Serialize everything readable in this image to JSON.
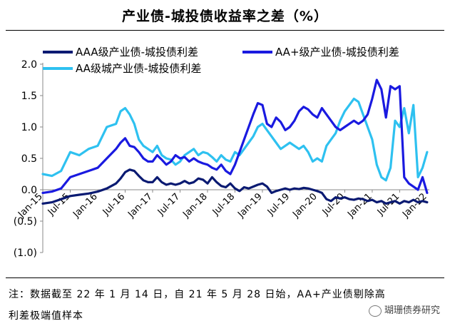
{
  "chart_data": {
    "type": "line",
    "title": "产业债-城投债收益率之差（%）",
    "x": [
      "Jan-15",
      "Jul-15",
      "Jan-16",
      "Jul-16",
      "Jan-17",
      "Jul-17",
      "Jan-18",
      "Jul-18",
      "Jan-19",
      "Jul-19",
      "Jan-20",
      "Jul-20",
      "Jan-21",
      "Jul-21",
      "Jan-22"
    ],
    "x_tick_labels": [
      "Jan-15",
      "Jul-15",
      "Jan-16",
      "Jul-16",
      "Jan-17",
      "Jul-17",
      "Jan-18",
      "Jul-18",
      "Jan-19",
      "Jul-19",
      "Jan-20",
      "Jul-20",
      "Jan-21",
      "Jul-21",
      "Jan-22"
    ],
    "y_tick_labels": [
      "2.0",
      "1.5",
      "1.0",
      "0.5",
      "0.0",
      "(0.5)",
      "(1.0)"
    ],
    "ylim": [
      -1.0,
      2.0
    ],
    "xlim": [
      "Jan-15",
      "Jan-22"
    ],
    "legend_position": "top",
    "grid": false,
    "series": [
      {
        "name": "AAA级产业债-城投债利差",
        "color": "#0a1a72",
        "points": [
          [
            "2015-01",
            -0.22
          ],
          [
            "2015-03",
            -0.2
          ],
          [
            "2015-05",
            -0.15
          ],
          [
            "2015-07",
            -0.1
          ],
          [
            "2015-09",
            -0.08
          ],
          [
            "2015-11",
            -0.06
          ],
          [
            "2016-01",
            -0.03
          ],
          [
            "2016-03",
            0.02
          ],
          [
            "2016-05",
            0.1
          ],
          [
            "2016-06",
            0.18
          ],
          [
            "2016-07",
            0.28
          ],
          [
            "2016-08",
            0.32
          ],
          [
            "2016-09",
            0.3
          ],
          [
            "2016-10",
            0.22
          ],
          [
            "2016-11",
            0.15
          ],
          [
            "2016-12",
            0.12
          ],
          [
            "2017-01",
            0.12
          ],
          [
            "2017-02",
            0.2
          ],
          [
            "2017-03",
            0.12
          ],
          [
            "2017-04",
            0.08
          ],
          [
            "2017-05",
            0.1
          ],
          [
            "2017-06",
            0.08
          ],
          [
            "2017-07",
            0.1
          ],
          [
            "2017-08",
            0.14
          ],
          [
            "2017-09",
            0.1
          ],
          [
            "2017-10",
            0.12
          ],
          [
            "2017-11",
            0.18
          ],
          [
            "2017-12",
            0.16
          ],
          [
            "2018-01",
            0.1
          ],
          [
            "2018-02",
            0.2
          ],
          [
            "2018-03",
            0.12
          ],
          [
            "2018-04",
            0.06
          ],
          [
            "2018-05",
            0.04
          ],
          [
            "2018-06",
            0.1
          ],
          [
            "2018-07",
            0.02
          ],
          [
            "2018-08",
            -0.02
          ],
          [
            "2018-09",
            0.04
          ],
          [
            "2018-10",
            0.02
          ],
          [
            "2018-11",
            0.05
          ],
          [
            "2018-12",
            0.08
          ],
          [
            "2019-01",
            0.1
          ],
          [
            "2019-02",
            0.05
          ],
          [
            "2019-03",
            -0.05
          ],
          [
            "2019-04",
            -0.02
          ],
          [
            "2019-05",
            0.0
          ],
          [
            "2019-06",
            0.02
          ],
          [
            "2019-07",
            0.0
          ],
          [
            "2019-08",
            0.02
          ],
          [
            "2019-09",
            0.01
          ],
          [
            "2019-10",
            0.03
          ],
          [
            "2019-11",
            0.02
          ],
          [
            "2019-12",
            0.0
          ],
          [
            "2020-01",
            -0.02
          ],
          [
            "2020-02",
            -0.05
          ],
          [
            "2020-03",
            -0.15
          ],
          [
            "2020-04",
            -0.18
          ],
          [
            "2020-05",
            -0.12
          ],
          [
            "2020-06",
            -0.14
          ],
          [
            "2020-07",
            -0.12
          ],
          [
            "2020-08",
            -0.15
          ],
          [
            "2020-09",
            -0.16
          ],
          [
            "2020-10",
            -0.14
          ],
          [
            "2020-11",
            -0.15
          ],
          [
            "2020-12",
            -0.18
          ],
          [
            "2021-01",
            -0.16
          ],
          [
            "2021-02",
            -0.2
          ],
          [
            "2021-03",
            -0.18
          ],
          [
            "2021-04",
            -0.22
          ],
          [
            "2021-05",
            -0.2
          ],
          [
            "2021-06",
            -0.18
          ],
          [
            "2021-07",
            -0.22
          ],
          [
            "2021-08",
            -0.18
          ],
          [
            "2021-09",
            -0.2
          ],
          [
            "2021-10",
            -0.16
          ],
          [
            "2021-11",
            -0.2
          ],
          [
            "2021-12",
            -0.18
          ],
          [
            "2022-01",
            -0.2
          ]
        ]
      },
      {
        "name": "AA+级产业债-城投债利差",
        "color": "#1a1ae0",
        "points": [
          [
            "2015-01",
            -0.05
          ],
          [
            "2015-03",
            -0.03
          ],
          [
            "2015-05",
            0.02
          ],
          [
            "2015-07",
            0.2
          ],
          [
            "2015-09",
            0.25
          ],
          [
            "2015-11",
            0.3
          ],
          [
            "2016-01",
            0.35
          ],
          [
            "2016-03",
            0.5
          ],
          [
            "2016-05",
            0.65
          ],
          [
            "2016-06",
            0.75
          ],
          [
            "2016-07",
            0.82
          ],
          [
            "2016-08",
            0.7
          ],
          [
            "2016-09",
            0.68
          ],
          [
            "2016-10",
            0.6
          ],
          [
            "2016-11",
            0.5
          ],
          [
            "2016-12",
            0.45
          ],
          [
            "2017-01",
            0.45
          ],
          [
            "2017-02",
            0.55
          ],
          [
            "2017-03",
            0.48
          ],
          [
            "2017-04",
            0.4
          ],
          [
            "2017-05",
            0.45
          ],
          [
            "2017-06",
            0.55
          ],
          [
            "2017-07",
            0.5
          ],
          [
            "2017-08",
            0.52
          ],
          [
            "2017-09",
            0.45
          ],
          [
            "2017-10",
            0.5
          ],
          [
            "2017-11",
            0.45
          ],
          [
            "2017-12",
            0.42
          ],
          [
            "2018-01",
            0.4
          ],
          [
            "2018-02",
            0.35
          ],
          [
            "2018-03",
            0.32
          ],
          [
            "2018-04",
            0.4
          ],
          [
            "2018-05",
            0.3
          ],
          [
            "2018-06",
            0.25
          ],
          [
            "2018-07",
            0.4
          ],
          [
            "2018-08",
            0.6
          ],
          [
            "2018-09",
            0.8
          ],
          [
            "2018-10",
            1.0
          ],
          [
            "2018-11",
            1.2
          ],
          [
            "2018-12",
            1.38
          ],
          [
            "2019-01",
            1.35
          ],
          [
            "2019-02",
            1.05
          ],
          [
            "2019-03",
            1.0
          ],
          [
            "2019-04",
            1.15
          ],
          [
            "2019-05",
            1.08
          ],
          [
            "2019-06",
            0.95
          ],
          [
            "2019-07",
            1.0
          ],
          [
            "2019-08",
            1.1
          ],
          [
            "2019-09",
            1.25
          ],
          [
            "2019-10",
            1.32
          ],
          [
            "2019-11",
            1.28
          ],
          [
            "2019-12",
            1.2
          ],
          [
            "2020-01",
            1.15
          ],
          [
            "2020-02",
            1.3
          ],
          [
            "2020-03",
            1.2
          ],
          [
            "2020-04",
            1.1
          ],
          [
            "2020-05",
            1.0
          ],
          [
            "2020-06",
            0.95
          ],
          [
            "2020-07",
            1.0
          ],
          [
            "2020-08",
            1.05
          ],
          [
            "2020-09",
            1.1
          ],
          [
            "2020-10",
            1.05
          ],
          [
            "2020-11",
            1.1
          ],
          [
            "2020-12",
            1.2
          ],
          [
            "2021-01",
            1.45
          ],
          [
            "2021-02",
            1.75
          ],
          [
            "2021-03",
            1.6
          ],
          [
            "2021-04",
            1.15
          ],
          [
            "2021-05",
            1.65
          ],
          [
            "2021-06",
            1.6
          ],
          [
            "2021-07",
            1.65
          ],
          [
            "2021-08",
            0.2
          ],
          [
            "2021-09",
            0.1
          ],
          [
            "2021-10",
            0.05
          ],
          [
            "2021-11",
            0.0
          ],
          [
            "2021-12",
            0.2
          ],
          [
            "2022-01",
            -0.05
          ]
        ]
      },
      {
        "name": "AA级城产业债-城投债利差",
        "color": "#2ec1f0",
        "points": [
          [
            "2015-01",
            0.25
          ],
          [
            "2015-03",
            0.22
          ],
          [
            "2015-05",
            0.3
          ],
          [
            "2015-07",
            0.6
          ],
          [
            "2015-09",
            0.55
          ],
          [
            "2015-11",
            0.65
          ],
          [
            "2016-01",
            0.7
          ],
          [
            "2016-03",
            1.0
          ],
          [
            "2016-05",
            1.05
          ],
          [
            "2016-06",
            1.25
          ],
          [
            "2016-07",
            1.3
          ],
          [
            "2016-08",
            1.2
          ],
          [
            "2016-09",
            1.05
          ],
          [
            "2016-10",
            0.8
          ],
          [
            "2016-11",
            0.7
          ],
          [
            "2016-12",
            0.65
          ],
          [
            "2017-01",
            0.6
          ],
          [
            "2017-02",
            0.7
          ],
          [
            "2017-03",
            0.55
          ],
          [
            "2017-04",
            0.5
          ],
          [
            "2017-05",
            0.48
          ],
          [
            "2017-06",
            0.4
          ],
          [
            "2017-07",
            0.45
          ],
          [
            "2017-08",
            0.55
          ],
          [
            "2017-09",
            0.6
          ],
          [
            "2017-10",
            0.65
          ],
          [
            "2017-11",
            0.55
          ],
          [
            "2017-12",
            0.6
          ],
          [
            "2018-01",
            0.58
          ],
          [
            "2018-02",
            0.52
          ],
          [
            "2018-03",
            0.45
          ],
          [
            "2018-04",
            0.55
          ],
          [
            "2018-05",
            0.48
          ],
          [
            "2018-06",
            0.45
          ],
          [
            "2018-07",
            0.6
          ],
          [
            "2018-08",
            0.55
          ],
          [
            "2018-09",
            0.65
          ],
          [
            "2018-10",
            0.75
          ],
          [
            "2018-11",
            0.85
          ],
          [
            "2018-12",
            1.0
          ],
          [
            "2019-01",
            1.05
          ],
          [
            "2019-02",
            0.95
          ],
          [
            "2019-03",
            0.85
          ],
          [
            "2019-04",
            0.75
          ],
          [
            "2019-05",
            0.65
          ],
          [
            "2019-06",
            0.7
          ],
          [
            "2019-07",
            0.75
          ],
          [
            "2019-08",
            0.7
          ],
          [
            "2019-09",
            0.65
          ],
          [
            "2019-10",
            0.7
          ],
          [
            "2019-11",
            0.6
          ],
          [
            "2019-12",
            0.45
          ],
          [
            "2020-01",
            0.5
          ],
          [
            "2020-02",
            0.45
          ],
          [
            "2020-03",
            0.7
          ],
          [
            "2020-04",
            0.8
          ],
          [
            "2020-05",
            0.9
          ],
          [
            "2020-06",
            1.1
          ],
          [
            "2020-07",
            1.25
          ],
          [
            "2020-08",
            1.35
          ],
          [
            "2020-09",
            1.45
          ],
          [
            "2020-10",
            1.4
          ],
          [
            "2020-11",
            1.2
          ],
          [
            "2020-12",
            1.0
          ],
          [
            "2021-01",
            0.8
          ],
          [
            "2021-02",
            0.4
          ],
          [
            "2021-03",
            0.2
          ],
          [
            "2021-04",
            0.15
          ],
          [
            "2021-05",
            0.35
          ],
          [
            "2021-06",
            1.1
          ],
          [
            "2021-07",
            1.0
          ],
          [
            "2021-08",
            1.3
          ],
          [
            "2021-09",
            0.9
          ],
          [
            "2021-10",
            1.35
          ],
          [
            "2021-11",
            0.2
          ],
          [
            "2021-12",
            0.35
          ],
          [
            "2022-01",
            0.6
          ]
        ]
      }
    ]
  },
  "note": {
    "line1": "注：数据截至 22 年 1 月 14 日，自 21 年 5 月 28 日始，AA+产业债剔除高",
    "line2": "利差极端值样本"
  },
  "watermark": "瑚珊债券研究"
}
